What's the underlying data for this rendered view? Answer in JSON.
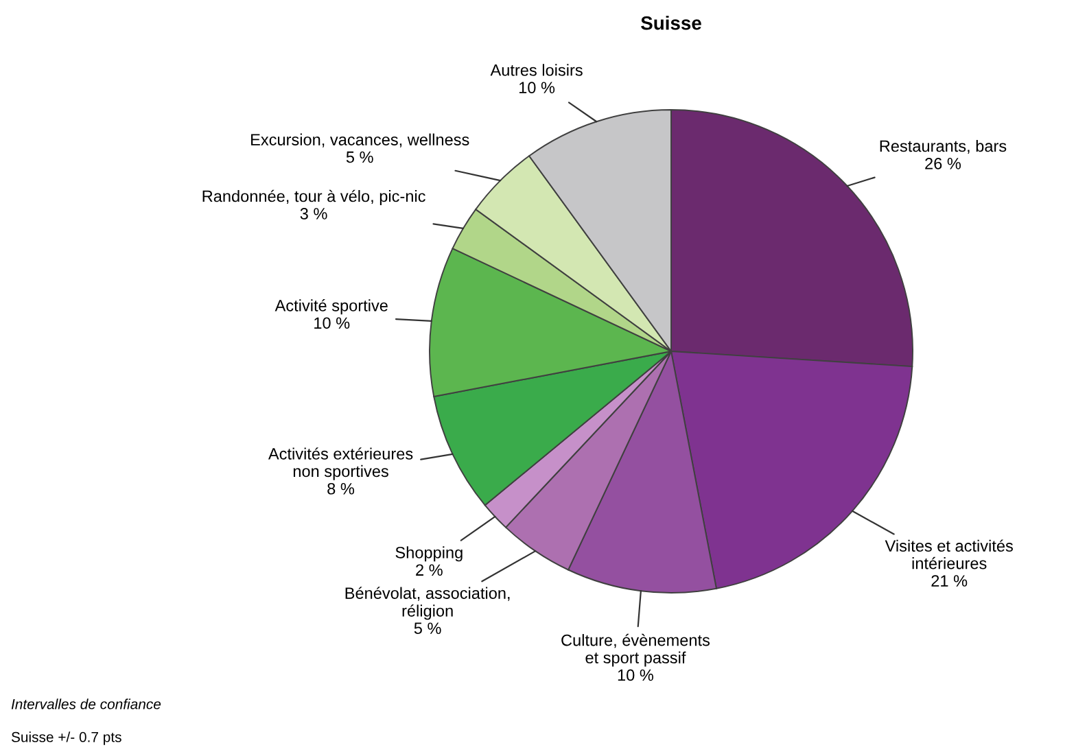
{
  "chart_data": {
    "type": "pie",
    "title": "Suisse",
    "categories": [
      "Restaurants, bars",
      "Visites et activités\nintérieures",
      "Culture, évènements\net sport passif",
      "Bénévolat, association,\nréligion",
      "Shopping",
      "Activités extérieures\nnon sportives",
      "Activité sportive",
      "Randonnée, tour à vélo, pic-nic",
      "Excursion, vacances, wellness",
      "Autres loisirs"
    ],
    "values": [
      26,
      21,
      10,
      5,
      2,
      8,
      10,
      3,
      5,
      10
    ],
    "colors": [
      "#6b2a6e",
      "#7f3390",
      "#9450a0",
      "#ad70b0",
      "#c690c9",
      "#3aab4b",
      "#5cb64f",
      "#b1d689",
      "#d3e7b2",
      "#c6c6c8"
    ],
    "value_labels": [
      "26 %",
      "21 %",
      "10 %",
      "5 %",
      "2 %",
      "8 %",
      "10 %",
      "3 %",
      "5 %",
      "10 %"
    ],
    "annotations": [
      "Intervalles de confiance",
      "Suisse +/- 0.7 pts"
    ]
  }
}
